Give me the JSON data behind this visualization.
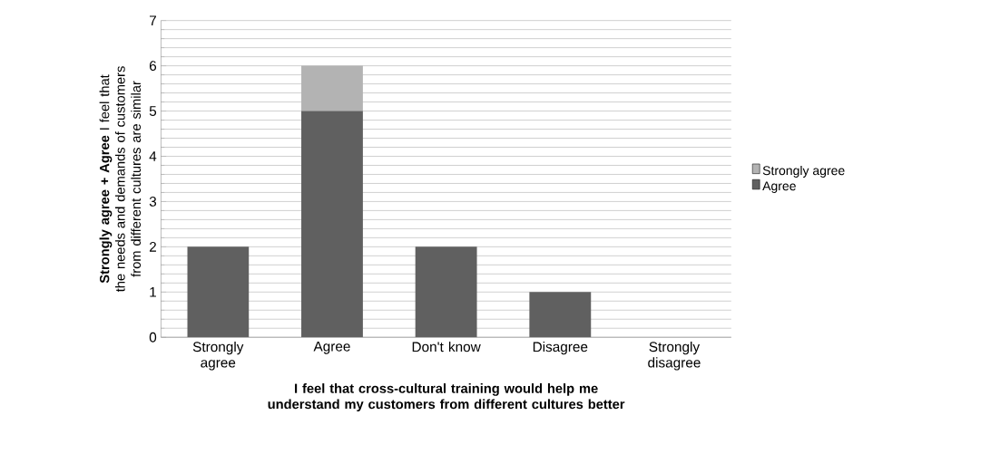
{
  "chart_data": {
    "type": "bar",
    "stacked": true,
    "xlabel": "I feel that cross-cultural training would help me understand my customers from different cultures better",
    "ylabel": "**Strongly agree + Agree** I feel that the needs and demands of customers from different cultures are similar",
    "categories": [
      "Strongly agree",
      "Agree",
      "Don't know",
      "Disagree",
      "Strongly disagree"
    ],
    "series": [
      {
        "name": "Agree",
        "color": "#606060",
        "values": [
          2,
          5,
          2,
          1,
          0
        ]
      },
      {
        "name": "Strongly agree",
        "color": "#b3b3b3",
        "values": [
          0,
          1,
          0,
          0,
          0
        ]
      }
    ],
    "ylim": [
      0,
      7
    ],
    "yticks": [
      0,
      1,
      2,
      3,
      4,
      5,
      6,
      7
    ],
    "grid": "y",
    "legend": "right"
  }
}
